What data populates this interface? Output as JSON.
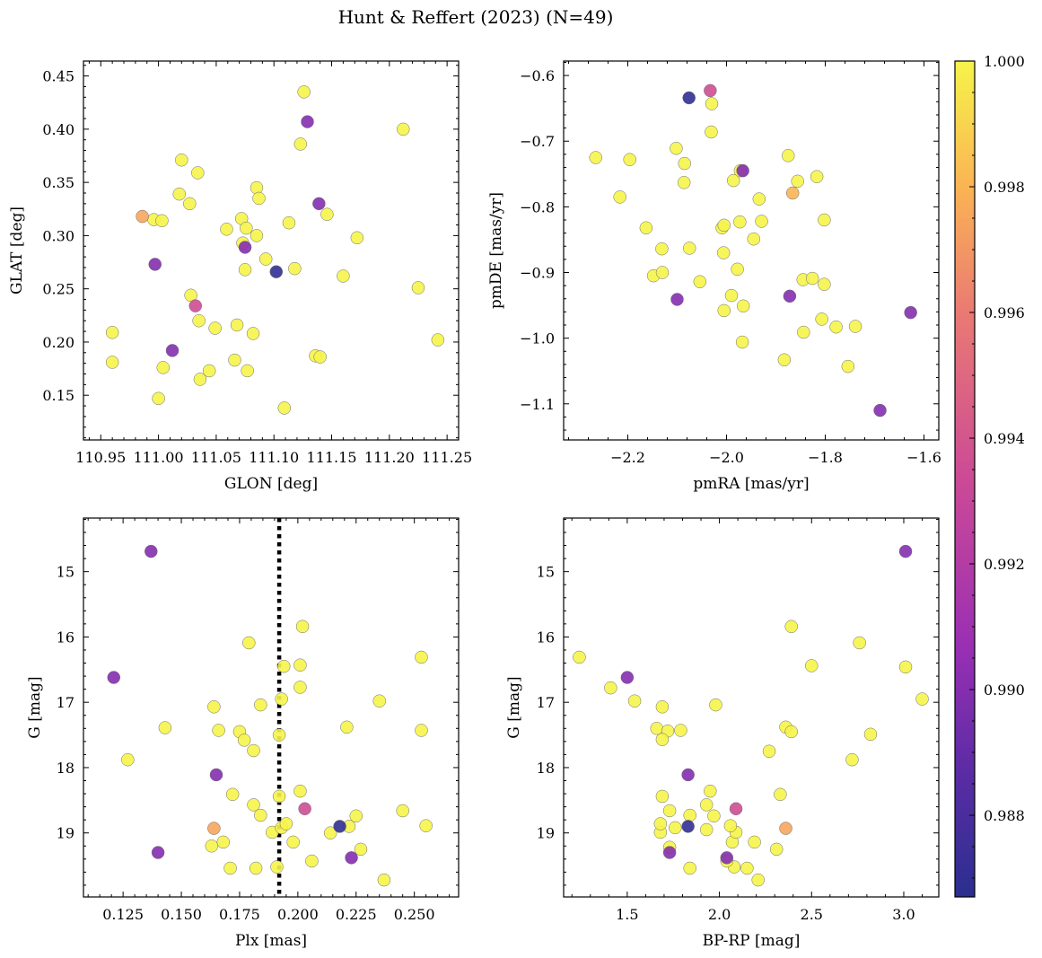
{
  "figure": {
    "title": "Hunt & Reffert (2023) (N=49)"
  },
  "colorbar": {
    "colormap": "plasma",
    "range": [
      0.9867,
      1.0
    ],
    "ticks": [
      "0.988",
      "0.990",
      "0.992",
      "0.994",
      "0.996",
      "0.998",
      "1.000"
    ],
    "tick_values": [
      0.988,
      0.99,
      0.992,
      0.994,
      0.996,
      0.998,
      1.0
    ]
  },
  "chart_data": [
    {
      "type": "scatter",
      "xlabel": "GLON [deg]",
      "ylabel": "GLAT [deg]",
      "xlim": [
        110.935,
        111.26
      ],
      "ylim": [
        0.108,
        0.464
      ],
      "xticks": [
        110.95,
        111.0,
        111.05,
        111.1,
        111.15,
        111.2,
        111.25
      ],
      "xtick_labels": [
        "110.95",
        "111.00",
        "111.05",
        "111.10",
        "111.15",
        "111.20",
        "111.25"
      ],
      "yticks": [
        0.15,
        0.2,
        0.25,
        0.3,
        0.35,
        0.4,
        0.45
      ],
      "ytick_labels": [
        "0.15",
        "0.20",
        "0.25",
        "0.30",
        "0.35",
        "0.40",
        "0.45"
      ],
      "points": [
        {
          "x": 110.96,
          "y": 0.209,
          "c": 1.0
        },
        {
          "x": 110.96,
          "y": 0.181,
          "c": 1.0
        },
        {
          "x": 110.986,
          "y": 0.318,
          "c": 0.9975
        },
        {
          "x": 110.996,
          "y": 0.315,
          "c": 1.0
        },
        {
          "x": 111.003,
          "y": 0.314,
          "c": 1.0
        },
        {
          "x": 110.997,
          "y": 0.273,
          "c": 0.99
        },
        {
          "x": 111.0,
          "y": 0.147,
          "c": 1.0
        },
        {
          "x": 111.004,
          "y": 0.176,
          "c": 1.0
        },
        {
          "x": 111.012,
          "y": 0.192,
          "c": 0.99
        },
        {
          "x": 111.018,
          "y": 0.339,
          "c": 1.0
        },
        {
          "x": 111.02,
          "y": 0.371,
          "c": 1.0
        },
        {
          "x": 111.027,
          "y": 0.33,
          "c": 1.0
        },
        {
          "x": 111.028,
          "y": 0.244,
          "c": 1.0
        },
        {
          "x": 111.032,
          "y": 0.234,
          "c": 0.9935
        },
        {
          "x": 111.034,
          "y": 0.359,
          "c": 1.0
        },
        {
          "x": 111.035,
          "y": 0.22,
          "c": 1.0
        },
        {
          "x": 111.036,
          "y": 0.165,
          "c": 1.0
        },
        {
          "x": 111.044,
          "y": 0.173,
          "c": 1.0
        },
        {
          "x": 111.049,
          "y": 0.213,
          "c": 1.0
        },
        {
          "x": 111.059,
          "y": 0.306,
          "c": 1.0
        },
        {
          "x": 111.066,
          "y": 0.183,
          "c": 1.0
        },
        {
          "x": 111.068,
          "y": 0.216,
          "c": 1.0
        },
        {
          "x": 111.072,
          "y": 0.316,
          "c": 1.0
        },
        {
          "x": 111.073,
          "y": 0.293,
          "c": 1.0
        },
        {
          "x": 111.075,
          "y": 0.289,
          "c": 0.99
        },
        {
          "x": 111.075,
          "y": 0.268,
          "c": 1.0
        },
        {
          "x": 111.076,
          "y": 0.307,
          "c": 1.0
        },
        {
          "x": 111.077,
          "y": 0.173,
          "c": 1.0
        },
        {
          "x": 111.082,
          "y": 0.208,
          "c": 1.0
        },
        {
          "x": 111.085,
          "y": 0.3,
          "c": 1.0
        },
        {
          "x": 111.085,
          "y": 0.345,
          "c": 1.0
        },
        {
          "x": 111.087,
          "y": 0.335,
          "c": 1.0
        },
        {
          "x": 111.093,
          "y": 0.278,
          "c": 1.0
        },
        {
          "x": 111.102,
          "y": 0.266,
          "c": 0.987
        },
        {
          "x": 111.109,
          "y": 0.138,
          "c": 1.0
        },
        {
          "x": 111.113,
          "y": 0.312,
          "c": 1.0
        },
        {
          "x": 111.118,
          "y": 0.269,
          "c": 1.0
        },
        {
          "x": 111.123,
          "y": 0.386,
          "c": 1.0
        },
        {
          "x": 111.126,
          "y": 0.435,
          "c": 1.0
        },
        {
          "x": 111.129,
          "y": 0.407,
          "c": 0.99
        },
        {
          "x": 111.136,
          "y": 0.187,
          "c": 1.0
        },
        {
          "x": 111.14,
          "y": 0.186,
          "c": 1.0
        },
        {
          "x": 111.139,
          "y": 0.33,
          "c": 0.99
        },
        {
          "x": 111.146,
          "y": 0.32,
          "c": 1.0
        },
        {
          "x": 111.16,
          "y": 0.262,
          "c": 1.0
        },
        {
          "x": 111.172,
          "y": 0.298,
          "c": 1.0
        },
        {
          "x": 111.212,
          "y": 0.4,
          "c": 1.0
        },
        {
          "x": 111.225,
          "y": 0.251,
          "c": 1.0
        },
        {
          "x": 111.242,
          "y": 0.202,
          "c": 1.0
        }
      ]
    },
    {
      "type": "scatter",
      "xlabel": "pmRA [mas/yr]",
      "ylabel": "pmDE [mas/yr]",
      "xlim": [
        -2.33,
        -1.57
      ],
      "ylim": [
        -1.155,
        -0.578
      ],
      "xticks": [
        -2.2,
        -2.0,
        -1.8,
        -1.6
      ],
      "xtick_labels": [
        "−2.2",
        "−2.0",
        "−1.8",
        "−1.6"
      ],
      "yticks": [
        -1.1,
        -1.0,
        -0.9,
        -0.8,
        -0.7,
        -0.6
      ],
      "ytick_labels": [
        "−1.1",
        "−1.0",
        "−0.9",
        "−0.8",
        "−0.7",
        "−0.6"
      ],
      "points": [
        {
          "x": -2.265,
          "y": -0.725,
          "c": 1.0
        },
        {
          "x": -2.196,
          "y": -0.728,
          "c": 1.0
        },
        {
          "x": -2.216,
          "y": -0.785,
          "c": 1.0
        },
        {
          "x": -2.163,
          "y": -0.832,
          "c": 1.0
        },
        {
          "x": -2.148,
          "y": -0.905,
          "c": 1.0
        },
        {
          "x": -2.131,
          "y": -0.864,
          "c": 1.0
        },
        {
          "x": -2.13,
          "y": -0.9,
          "c": 1.0
        },
        {
          "x": -2.102,
          "y": -0.711,
          "c": 1.0
        },
        {
          "x": -2.1,
          "y": -0.941,
          "c": 0.99
        },
        {
          "x": -2.085,
          "y": -0.734,
          "c": 1.0
        },
        {
          "x": -2.086,
          "y": -0.763,
          "c": 1.0
        },
        {
          "x": -2.075,
          "y": -0.863,
          "c": 1.0
        },
        {
          "x": -2.076,
          "y": -0.634,
          "c": 0.987
        },
        {
          "x": -2.054,
          "y": -0.914,
          "c": 1.0
        },
        {
          "x": -2.033,
          "y": -0.623,
          "c": 0.9935
        },
        {
          "x": -2.03,
          "y": -0.643,
          "c": 1.0
        },
        {
          "x": -2.031,
          "y": -0.686,
          "c": 1.0
        },
        {
          "x": -2.009,
          "y": -0.832,
          "c": 1.0
        },
        {
          "x": -2.005,
          "y": -0.828,
          "c": 1.0
        },
        {
          "x": -2.006,
          "y": -0.87,
          "c": 1.0
        },
        {
          "x": -2.005,
          "y": -0.958,
          "c": 1.0
        },
        {
          "x": -1.99,
          "y": -0.935,
          "c": 1.0
        },
        {
          "x": -1.986,
          "y": -0.76,
          "c": 1.0
        },
        {
          "x": -1.978,
          "y": -0.895,
          "c": 1.0
        },
        {
          "x": -1.973,
          "y": -0.823,
          "c": 1.0
        },
        {
          "x": -1.972,
          "y": -0.745,
          "c": 1.0
        },
        {
          "x": -1.967,
          "y": -0.745,
          "c": 0.99
        },
        {
          "x": -1.966,
          "y": -0.951,
          "c": 1.0
        },
        {
          "x": -1.968,
          "y": -1.006,
          "c": 1.0
        },
        {
          "x": -1.945,
          "y": -0.849,
          "c": 1.0
        },
        {
          "x": -1.934,
          "y": -0.788,
          "c": 1.0
        },
        {
          "x": -1.929,
          "y": -0.822,
          "c": 1.0
        },
        {
          "x": -1.883,
          "y": -1.033,
          "c": 1.0
        },
        {
          "x": -1.875,
          "y": -0.722,
          "c": 1.0
        },
        {
          "x": -1.872,
          "y": -0.936,
          "c": 0.99
        },
        {
          "x": -1.866,
          "y": -0.779,
          "c": 0.998
        },
        {
          "x": -1.856,
          "y": -0.761,
          "c": 1.0
        },
        {
          "x": -1.845,
          "y": -0.911,
          "c": 1.0
        },
        {
          "x": -1.844,
          "y": -0.991,
          "c": 1.0
        },
        {
          "x": -1.826,
          "y": -0.909,
          "c": 1.0
        },
        {
          "x": -1.817,
          "y": -0.754,
          "c": 1.0
        },
        {
          "x": -1.807,
          "y": -0.971,
          "c": 1.0
        },
        {
          "x": -1.802,
          "y": -0.82,
          "c": 1.0
        },
        {
          "x": -1.802,
          "y": -0.918,
          "c": 1.0
        },
        {
          "x": -1.778,
          "y": -0.983,
          "c": 1.0
        },
        {
          "x": -1.754,
          "y": -1.043,
          "c": 1.0
        },
        {
          "x": -1.739,
          "y": -0.982,
          "c": 1.0
        },
        {
          "x": -1.689,
          "y": -1.11,
          "c": 0.99
        },
        {
          "x": -1.627,
          "y": -0.961,
          "c": 0.99
        }
      ]
    },
    {
      "type": "scatter",
      "xlabel": "Plx [mas]",
      "ylabel": "G [mag]",
      "y_inverted": true,
      "xlim": [
        0.108,
        0.269
      ],
      "ylim": [
        19.98,
        14.18
      ],
      "xticks": [
        0.125,
        0.15,
        0.175,
        0.2,
        0.225,
        0.25
      ],
      "xtick_labels": [
        "0.125",
        "0.150",
        "0.175",
        "0.200",
        "0.225",
        "0.250"
      ],
      "yticks": [
        15,
        16,
        17,
        18,
        19
      ],
      "ytick_labels": [
        "15",
        "16",
        "17",
        "18",
        "19"
      ],
      "vline": {
        "x": 0.192,
        "style": "dotted",
        "color": "#000000"
      },
      "points": [
        {
          "x": 0.137,
          "y": 14.69,
          "c": 0.99
        },
        {
          "x": 0.121,
          "y": 16.62,
          "c": 0.99
        },
        {
          "x": 0.127,
          "y": 17.88,
          "c": 1.0
        },
        {
          "x": 0.14,
          "y": 19.3,
          "c": 0.99
        },
        {
          "x": 0.143,
          "y": 17.39,
          "c": 1.0
        },
        {
          "x": 0.165,
          "y": 18.11,
          "c": 0.99
        },
        {
          "x": 0.164,
          "y": 17.07,
          "c": 1.0
        },
        {
          "x": 0.166,
          "y": 17.43,
          "c": 1.0
        },
        {
          "x": 0.164,
          "y": 18.93,
          "c": 0.9975
        },
        {
          "x": 0.163,
          "y": 19.2,
          "c": 1.0
        },
        {
          "x": 0.168,
          "y": 19.14,
          "c": 1.0
        },
        {
          "x": 0.171,
          "y": 19.54,
          "c": 1.0
        },
        {
          "x": 0.172,
          "y": 18.41,
          "c": 1.0
        },
        {
          "x": 0.175,
          "y": 17.45,
          "c": 1.0
        },
        {
          "x": 0.177,
          "y": 17.58,
          "c": 1.0
        },
        {
          "x": 0.179,
          "y": 16.09,
          "c": 1.0
        },
        {
          "x": 0.181,
          "y": 17.74,
          "c": 1.0
        },
        {
          "x": 0.181,
          "y": 18.57,
          "c": 1.0
        },
        {
          "x": 0.182,
          "y": 19.54,
          "c": 1.0
        },
        {
          "x": 0.184,
          "y": 17.04,
          "c": 1.0
        },
        {
          "x": 0.184,
          "y": 18.73,
          "c": 1.0
        },
        {
          "x": 0.189,
          "y": 18.99,
          "c": 1.0
        },
        {
          "x": 0.191,
          "y": 19.52,
          "c": 1.0
        },
        {
          "x": 0.192,
          "y": 17.5,
          "c": 1.0
        },
        {
          "x": 0.192,
          "y": 18.44,
          "c": 1.0
        },
        {
          "x": 0.193,
          "y": 18.92,
          "c": 1.0
        },
        {
          "x": 0.193,
          "y": 16.95,
          "c": 1.0
        },
        {
          "x": 0.194,
          "y": 16.45,
          "c": 1.0
        },
        {
          "x": 0.195,
          "y": 18.86,
          "c": 1.0
        },
        {
          "x": 0.198,
          "y": 19.14,
          "c": 1.0
        },
        {
          "x": 0.201,
          "y": 18.36,
          "c": 1.0
        },
        {
          "x": 0.201,
          "y": 16.43,
          "c": 1.0
        },
        {
          "x": 0.201,
          "y": 16.77,
          "c": 1.0
        },
        {
          "x": 0.202,
          "y": 15.84,
          "c": 1.0
        },
        {
          "x": 0.203,
          "y": 18.63,
          "c": 0.9935
        },
        {
          "x": 0.206,
          "y": 19.43,
          "c": 1.0
        },
        {
          "x": 0.214,
          "y": 19.0,
          "c": 1.0
        },
        {
          "x": 0.218,
          "y": 18.9,
          "c": 0.987
        },
        {
          "x": 0.221,
          "y": 17.38,
          "c": 1.0
        },
        {
          "x": 0.222,
          "y": 18.9,
          "c": 1.0
        },
        {
          "x": 0.223,
          "y": 19.38,
          "c": 0.99
        },
        {
          "x": 0.225,
          "y": 18.74,
          "c": 1.0
        },
        {
          "x": 0.227,
          "y": 19.25,
          "c": 1.0
        },
        {
          "x": 0.235,
          "y": 16.98,
          "c": 1.0
        },
        {
          "x": 0.237,
          "y": 19.72,
          "c": 1.0
        },
        {
          "x": 0.245,
          "y": 18.66,
          "c": 1.0
        },
        {
          "x": 0.253,
          "y": 16.31,
          "c": 1.0
        },
        {
          "x": 0.253,
          "y": 17.43,
          "c": 1.0
        },
        {
          "x": 0.255,
          "y": 18.89,
          "c": 1.0
        }
      ]
    },
    {
      "type": "scatter",
      "xlabel": "BP-RP [mag]",
      "ylabel": "G [mag]",
      "y_inverted": true,
      "xlim": [
        1.155,
        3.19
      ],
      "ylim": [
        19.98,
        14.18
      ],
      "xticks": [
        1.5,
        2.0,
        2.5,
        3.0
      ],
      "xtick_labels": [
        "1.5",
        "2.0",
        "2.5",
        "3.0"
      ],
      "yticks": [
        15,
        16,
        17,
        18,
        19
      ],
      "ytick_labels": [
        "15",
        "16",
        "17",
        "18",
        "19"
      ],
      "points": [
        {
          "x": 3.01,
          "y": 14.69,
          "c": 0.99
        },
        {
          "x": 1.5,
          "y": 16.62,
          "c": 0.99
        },
        {
          "x": 2.72,
          "y": 17.88,
          "c": 1.0
        },
        {
          "x": 1.73,
          "y": 19.3,
          "c": 0.99
        },
        {
          "x": 2.82,
          "y": 17.49,
          "c": 1.0
        },
        {
          "x": 1.83,
          "y": 18.11,
          "c": 0.99
        },
        {
          "x": 1.69,
          "y": 17.07,
          "c": 1.0
        },
        {
          "x": 1.66,
          "y": 17.4,
          "c": 1.0
        },
        {
          "x": 2.36,
          "y": 18.93,
          "c": 0.9975
        },
        {
          "x": 2.19,
          "y": 19.14,
          "c": 1.0
        },
        {
          "x": 2.07,
          "y": 19.14,
          "c": 1.0
        },
        {
          "x": 1.84,
          "y": 19.54,
          "c": 1.0
        },
        {
          "x": 2.33,
          "y": 18.41,
          "c": 1.0
        },
        {
          "x": 1.72,
          "y": 17.44,
          "c": 1.0
        },
        {
          "x": 1.69,
          "y": 17.57,
          "c": 1.0
        },
        {
          "x": 2.76,
          "y": 16.09,
          "c": 1.0
        },
        {
          "x": 2.27,
          "y": 17.75,
          "c": 1.0
        },
        {
          "x": 1.93,
          "y": 18.57,
          "c": 1.0
        },
        {
          "x": 2.15,
          "y": 19.54,
          "c": 1.0
        },
        {
          "x": 1.98,
          "y": 17.04,
          "c": 1.0
        },
        {
          "x": 1.84,
          "y": 18.73,
          "c": 1.0
        },
        {
          "x": 1.68,
          "y": 18.99,
          "c": 1.0
        },
        {
          "x": 2.08,
          "y": 19.52,
          "c": 1.0
        },
        {
          "x": 1.79,
          "y": 17.43,
          "c": 1.0
        },
        {
          "x": 1.69,
          "y": 18.44,
          "c": 1.0
        },
        {
          "x": 1.76,
          "y": 18.92,
          "c": 1.0
        },
        {
          "x": 1.54,
          "y": 16.98,
          "c": 1.0
        },
        {
          "x": 2.5,
          "y": 16.44,
          "c": 1.0
        },
        {
          "x": 1.68,
          "y": 18.86,
          "c": 1.0
        },
        {
          "x": 1.73,
          "y": 19.22,
          "c": 1.0
        },
        {
          "x": 1.95,
          "y": 18.36,
          "c": 1.0
        },
        {
          "x": 3.01,
          "y": 16.46,
          "c": 1.0
        },
        {
          "x": 1.41,
          "y": 16.78,
          "c": 1.0
        },
        {
          "x": 2.39,
          "y": 15.84,
          "c": 1.0
        },
        {
          "x": 2.09,
          "y": 18.63,
          "c": 0.9935
        },
        {
          "x": 2.04,
          "y": 19.43,
          "c": 1.0
        },
        {
          "x": 2.09,
          "y": 18.99,
          "c": 1.0
        },
        {
          "x": 1.83,
          "y": 18.9,
          "c": 0.987
        },
        {
          "x": 2.36,
          "y": 17.38,
          "c": 1.0
        },
        {
          "x": 2.06,
          "y": 18.89,
          "c": 1.0
        },
        {
          "x": 2.04,
          "y": 19.38,
          "c": 0.99
        },
        {
          "x": 1.97,
          "y": 18.74,
          "c": 1.0
        },
        {
          "x": 2.31,
          "y": 19.25,
          "c": 1.0
        },
        {
          "x": 1.73,
          "y": 18.66,
          "c": 1.0
        },
        {
          "x": 2.21,
          "y": 19.72,
          "c": 1.0
        },
        {
          "x": 1.93,
          "y": 18.95,
          "c": 1.0
        },
        {
          "x": 1.24,
          "y": 16.31,
          "c": 1.0
        },
        {
          "x": 2.39,
          "y": 17.45,
          "c": 1.0
        },
        {
          "x": 3.1,
          "y": 16.95,
          "c": 1.0
        }
      ]
    }
  ]
}
